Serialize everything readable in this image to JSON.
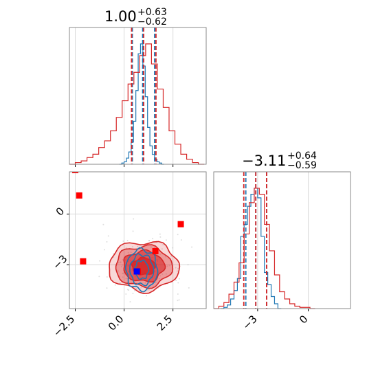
{
  "chart_data": {
    "type": "corner",
    "parameters": [
      {
        "marginal_title": {
          "median": "1.00",
          "plus": "+0.63",
          "minus": "−0.62"
        },
        "range": [
          -2.8,
          4.2
        ],
        "ticks": [
          {
            "value": -2.5,
            "label": "−2.5"
          },
          {
            "value": 0.0,
            "label": "0.0"
          },
          {
            "value": 2.5,
            "label": "2.5"
          }
        ]
      },
      {
        "marginal_title": {
          "median": "−3.11",
          "plus": "+0.64",
          "minus": "−0.59"
        },
        "range": [
          -5.6,
          2.5
        ],
        "ticks": [
          {
            "value": -3,
            "label": "−3"
          },
          {
            "value": 0,
            "label": "0"
          }
        ]
      }
    ],
    "series": [
      {
        "color": "#1f77b4",
        "quantiles_p0": [
          0.42,
          0.95,
          1.56
        ],
        "quantiles_p1": [
          -3.7,
          -3.11,
          -2.47
        ],
        "hist_p0": {
          "bins": [
            -0.24,
            -0.12,
            0.0,
            0.12,
            0.24,
            0.36,
            0.48,
            0.6,
            0.72,
            0.84,
            0.96,
            1.08,
            1.2,
            1.32,
            1.44,
            1.56,
            1.68,
            1.8,
            1.92,
            2.04
          ],
          "counts": [
            0,
            1,
            2,
            5,
            10,
            18,
            35,
            60,
            90,
            98,
            80,
            55,
            30,
            15,
            8,
            4,
            2,
            1,
            0
          ]
        },
        "hist_p1": {
          "bins": [
            -5.2,
            -5.0,
            -4.8,
            -4.6,
            -4.4,
            -4.2,
            -4.0,
            -3.8,
            -3.6,
            -3.4,
            -3.2,
            -3.0,
            -2.8,
            -2.6,
            -2.4,
            -2.2,
            -2.0,
            -1.8,
            -1.6
          ],
          "counts": [
            0,
            1,
            3,
            8,
            15,
            25,
            60,
            70,
            85,
            95,
            100,
            92,
            60,
            30,
            20,
            10,
            4,
            0
          ]
        }
      },
      {
        "color": "#d62728",
        "quantiles_p0": [
          0.38,
          1.0,
          1.63
        ],
        "quantiles_p1": [
          -3.82,
          -3.11,
          -2.47
        ],
        "hist_p0": {
          "bins": [
            -2.8,
            -2.5,
            -2.2,
            -1.9,
            -1.6,
            -1.3,
            -1.0,
            -0.7,
            -0.4,
            -0.1,
            0.2,
            0.5,
            0.8,
            1.1,
            1.4,
            1.7,
            2.0,
            2.3,
            2.6,
            2.9,
            3.2,
            3.5,
            3.8,
            4.1
          ],
          "counts": [
            0,
            1,
            2,
            4,
            6,
            10,
            14,
            20,
            28,
            38,
            48,
            55,
            65,
            72,
            60,
            45,
            34,
            20,
            12,
            6,
            3,
            1,
            0
          ]
        },
        "hist_p1": {
          "bins": [
            -5.6,
            -5.3,
            -5.0,
            -4.7,
            -4.4,
            -4.1,
            -3.8,
            -3.5,
            -3.2,
            -2.9,
            -2.6,
            -2.3,
            -2.0,
            -1.7,
            -1.4,
            -1.1,
            -0.8,
            -0.5,
            -0.2,
            0.1,
            0.4
          ],
          "counts": [
            0,
            2,
            5,
            12,
            22,
            38,
            62,
            88,
            100,
            95,
            70,
            48,
            28,
            14,
            8,
            4,
            2,
            1,
            1,
            0
          ]
        },
        "contours_2d": {
          "center": [
            1.0,
            -3.1
          ],
          "radii": [
            [
              0.6,
              0.5
            ],
            [
              1.05,
              0.9
            ],
            [
              1.45,
              1.2
            ],
            [
              1.8,
              1.45
            ]
          ]
        }
      }
    ],
    "blue_contours_2d": {
      "center": [
        0.9,
        -3.3
      ],
      "radii": [
        [
          0.35,
          0.55
        ],
        [
          0.6,
          0.9
        ],
        [
          0.8,
          1.2
        ]
      ]
    },
    "red_markers": [
      {
        "x": -2.5,
        "y": 2.6
      },
      {
        "x": -2.3,
        "y": 1.1
      },
      {
        "x": 2.9,
        "y": -0.6
      },
      {
        "x": -2.1,
        "y": -2.8
      },
      {
        "x": 1.6,
        "y": -2.2
      },
      {
        "x": 0.7,
        "y": -3.4
      }
    ],
    "blue_markers": [
      {
        "x": 0.65,
        "y": -3.4
      }
    ]
  }
}
